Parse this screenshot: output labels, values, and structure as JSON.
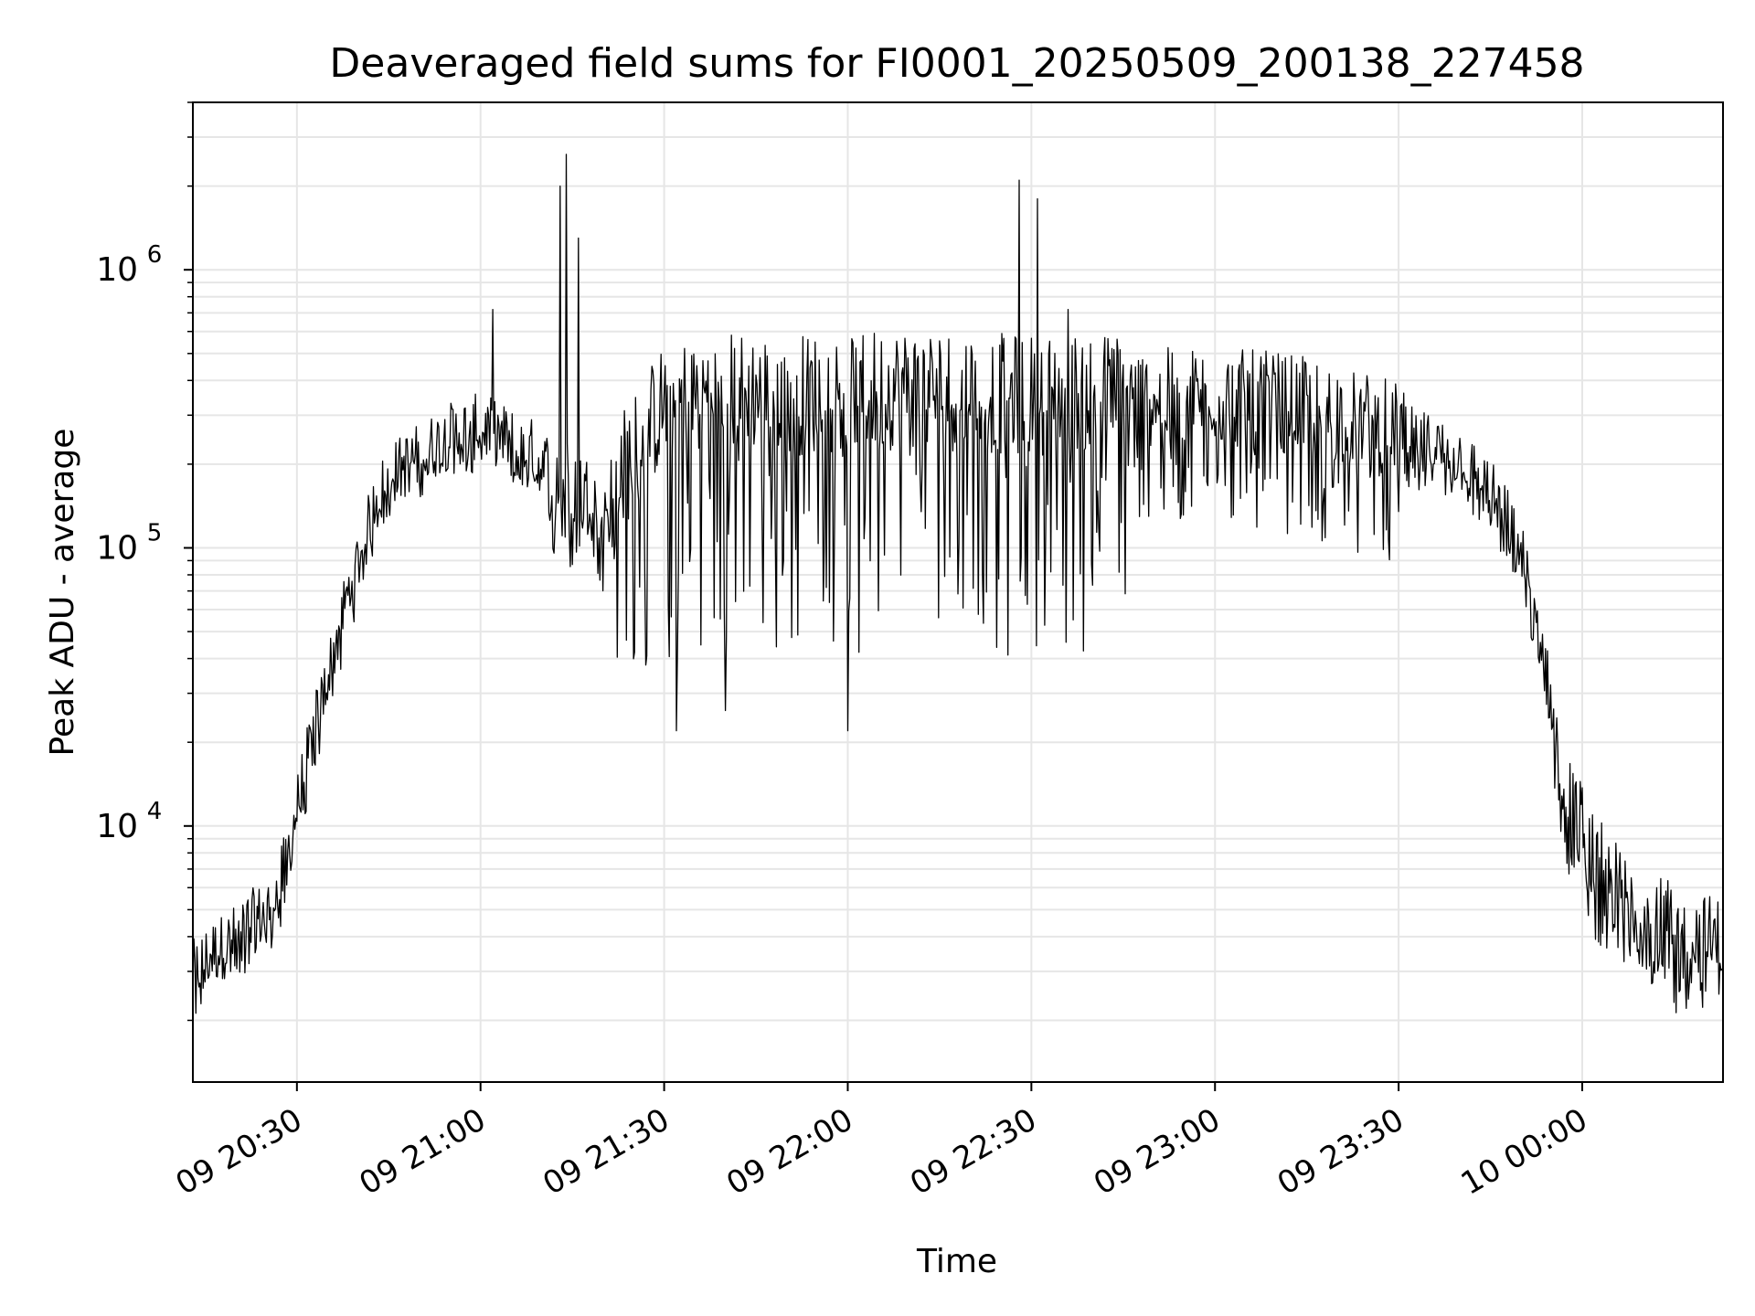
{
  "chart_data": {
    "type": "line",
    "title": "Deaveraged field sums for FI0001_20250509_200138_227458",
    "xlabel": "Time",
    "ylabel": "Peak ADU - average",
    "x_range": [
      "2025-05-09 20:13",
      "2025-05-10 00:23"
    ],
    "ylim": [
      1200,
      4000000
    ],
    "yscale": "log",
    "grid": true,
    "line_color": "#000000",
    "grid_color": "#e6e6e6",
    "x_ticks": [
      {
        "t": "2025-05-09 20:30",
        "label": "09 20:30"
      },
      {
        "t": "2025-05-09 21:00",
        "label": "09 21:00"
      },
      {
        "t": "2025-05-09 21:30",
        "label": "09 21:30"
      },
      {
        "t": "2025-05-09 22:00",
        "label": "09 22:00"
      },
      {
        "t": "2025-05-09 22:30",
        "label": "09 22:30"
      },
      {
        "t": "2025-05-09 23:00",
        "label": "09 23:00"
      },
      {
        "t": "2025-05-09 23:30",
        "label": "09 23:30"
      },
      {
        "t": "2025-05-10 00:00",
        "label": "10 00:00"
      }
    ],
    "y_ticks": [
      {
        "value": 10000,
        "base": "10",
        "exp": "4"
      },
      {
        "value": 100000,
        "base": "10",
        "exp": "5"
      },
      {
        "value": 1000000,
        "base": "10",
        "exp": "6"
      }
    ],
    "series": [
      {
        "x": [
          "2025-05-09 20:13",
          "2025-05-09 20:16",
          "2025-05-09 20:19",
          "2025-05-09 20:22",
          "2025-05-09 20:25",
          "2025-05-09 20:27",
          "2025-05-09 20:29",
          "2025-05-09 20:31",
          "2025-05-09 20:33",
          "2025-05-09 20:35",
          "2025-05-09 20:37",
          "2025-05-09 20:39",
          "2025-05-09 20:41",
          "2025-05-09 20:43",
          "2025-05-09 20:45",
          "2025-05-09 20:48",
          "2025-05-09 20:51",
          "2025-05-09 20:55",
          "2025-05-09 21:00",
          "2025-05-09 21:05",
          "2025-05-09 21:10",
          "2025-05-09 21:15",
          "2025-05-09 21:20",
          "2025-05-09 21:23",
          "2025-05-09 21:30",
          "2025-05-09 21:40",
          "2025-05-09 21:50",
          "2025-05-09 22:00",
          "2025-05-09 22:10",
          "2025-05-09 22:20",
          "2025-05-09 22:30",
          "2025-05-09 22:40",
          "2025-05-09 22:50",
          "2025-05-09 23:00",
          "2025-05-09 23:10",
          "2025-05-09 23:20",
          "2025-05-09 23:30",
          "2025-05-09 23:35",
          "2025-05-09 23:40",
          "2025-05-09 23:44",
          "2025-05-09 23:47",
          "2025-05-09 23:50",
          "2025-05-09 23:52",
          "2025-05-09 23:54",
          "2025-05-09 23:56",
          "2025-05-09 23:58",
          "2025-05-10 00:02",
          "2025-05-10 00:06",
          "2025-05-10 00:10",
          "2025-05-10 00:15",
          "2025-05-10 00:20",
          "2025-05-10 00:23"
        ],
        "values": [
          2800,
          3300,
          3600,
          4200,
          4600,
          5500,
          8500,
          14000,
          22000,
          32000,
          50000,
          72000,
          100000,
          140000,
          170000,
          190000,
          210000,
          240000,
          260000,
          230000,
          180000,
          160000,
          130000,
          170000,
          300000,
          330000,
          320000,
          330000,
          340000,
          330000,
          320000,
          330000,
          320000,
          320000,
          310000,
          280000,
          240000,
          220000,
          200000,
          160000,
          130000,
          90000,
          60000,
          35000,
          18000,
          11000,
          7000,
          5200,
          4300,
          3800,
          3500,
          3400
        ],
        "spikes": [
          {
            "t": "2025-05-09 21:13",
            "value": 2000000
          },
          {
            "t": "2025-05-09 21:14",
            "value": 2600000
          },
          {
            "t": "2025-05-09 21:16",
            "value": 1300000
          },
          {
            "t": "2025-05-09 21:02",
            "value": 720000
          },
          {
            "t": "2025-05-09 22:28",
            "value": 2100000
          },
          {
            "t": "2025-05-09 22:31",
            "value": 1800000
          },
          {
            "t": "2025-05-09 22:36",
            "value": 720000
          },
          {
            "t": "2025-05-09 21:40",
            "value": 26000
          },
          {
            "t": "2025-05-09 22:00",
            "value": 22000
          },
          {
            "t": "2025-05-09 21:32",
            "value": 22000
          }
        ]
      }
    ]
  }
}
